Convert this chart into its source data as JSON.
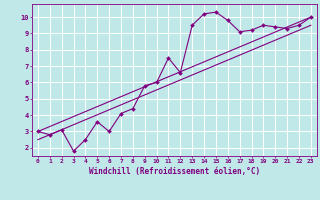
{
  "xlabel": "Windchill (Refroidissement éolien,°C)",
  "bg_color": "#c0e8e8",
  "line_color": "#800080",
  "grid_color": "#ffffff",
  "xlim": [
    -0.5,
    23.5
  ],
  "ylim": [
    1.5,
    10.8
  ],
  "xticks": [
    0,
    1,
    2,
    3,
    4,
    5,
    6,
    7,
    8,
    9,
    10,
    11,
    12,
    13,
    14,
    15,
    16,
    17,
    18,
    19,
    20,
    21,
    22,
    23
  ],
  "yticks": [
    2,
    3,
    4,
    5,
    6,
    7,
    8,
    9,
    10
  ],
  "line1_x": [
    0,
    1,
    2,
    3,
    4,
    5,
    6,
    7,
    8,
    9,
    10,
    11,
    12,
    13,
    14,
    15,
    16,
    17,
    18,
    19,
    20,
    21,
    22,
    23
  ],
  "line1_y": [
    3.0,
    2.8,
    3.1,
    1.8,
    2.5,
    3.6,
    3.0,
    4.1,
    4.4,
    5.8,
    6.0,
    7.5,
    6.6,
    9.5,
    10.2,
    10.3,
    9.8,
    9.1,
    9.2,
    9.5,
    9.4,
    9.3,
    9.5,
    10.0
  ],
  "line2_x": [
    0,
    23
  ],
  "line2_y": [
    3.0,
    10.0
  ],
  "line3_x": [
    0,
    23
  ],
  "line3_y": [
    2.5,
    9.5
  ]
}
